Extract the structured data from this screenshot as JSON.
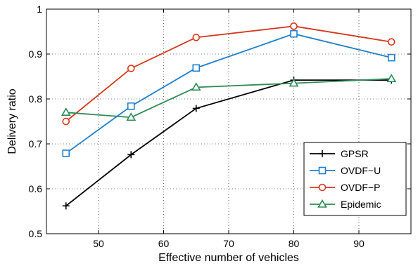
{
  "chart_data": {
    "type": "line",
    "title": "",
    "xlabel": "Effective number of vehicles",
    "ylabel": "Delivery ratio",
    "x": [
      45,
      55,
      65,
      80,
      95
    ],
    "xlim": [
      42,
      98
    ],
    "ylim": [
      0.5,
      1.0
    ],
    "xticks": [
      50,
      60,
      70,
      80,
      90
    ],
    "yticks": [
      0.5,
      0.6,
      0.7,
      0.8,
      0.9,
      1.0
    ],
    "ytick_labels": [
      "0.5",
      "0.6",
      "0.7",
      "0.8",
      "0.9",
      "1"
    ],
    "grid": true,
    "legend_position": "bottom-right",
    "series": [
      {
        "name": "GPSR",
        "color": "#000000",
        "marker": "plus",
        "values": [
          0.562,
          0.676,
          0.779,
          0.842,
          0.842
        ]
      },
      {
        "name": "OVDF−U",
        "color": "#1f7fcc",
        "marker": "square",
        "values": [
          0.679,
          0.784,
          0.869,
          0.945,
          0.892
        ]
      },
      {
        "name": "OVDF−P",
        "color": "#d5371c",
        "marker": "circle",
        "values": [
          0.75,
          0.868,
          0.937,
          0.962,
          0.927
        ]
      },
      {
        "name": "Epidemic",
        "color": "#2e8b57",
        "marker": "triangle",
        "values": [
          0.77,
          0.759,
          0.826,
          0.835,
          0.845
        ]
      }
    ]
  }
}
